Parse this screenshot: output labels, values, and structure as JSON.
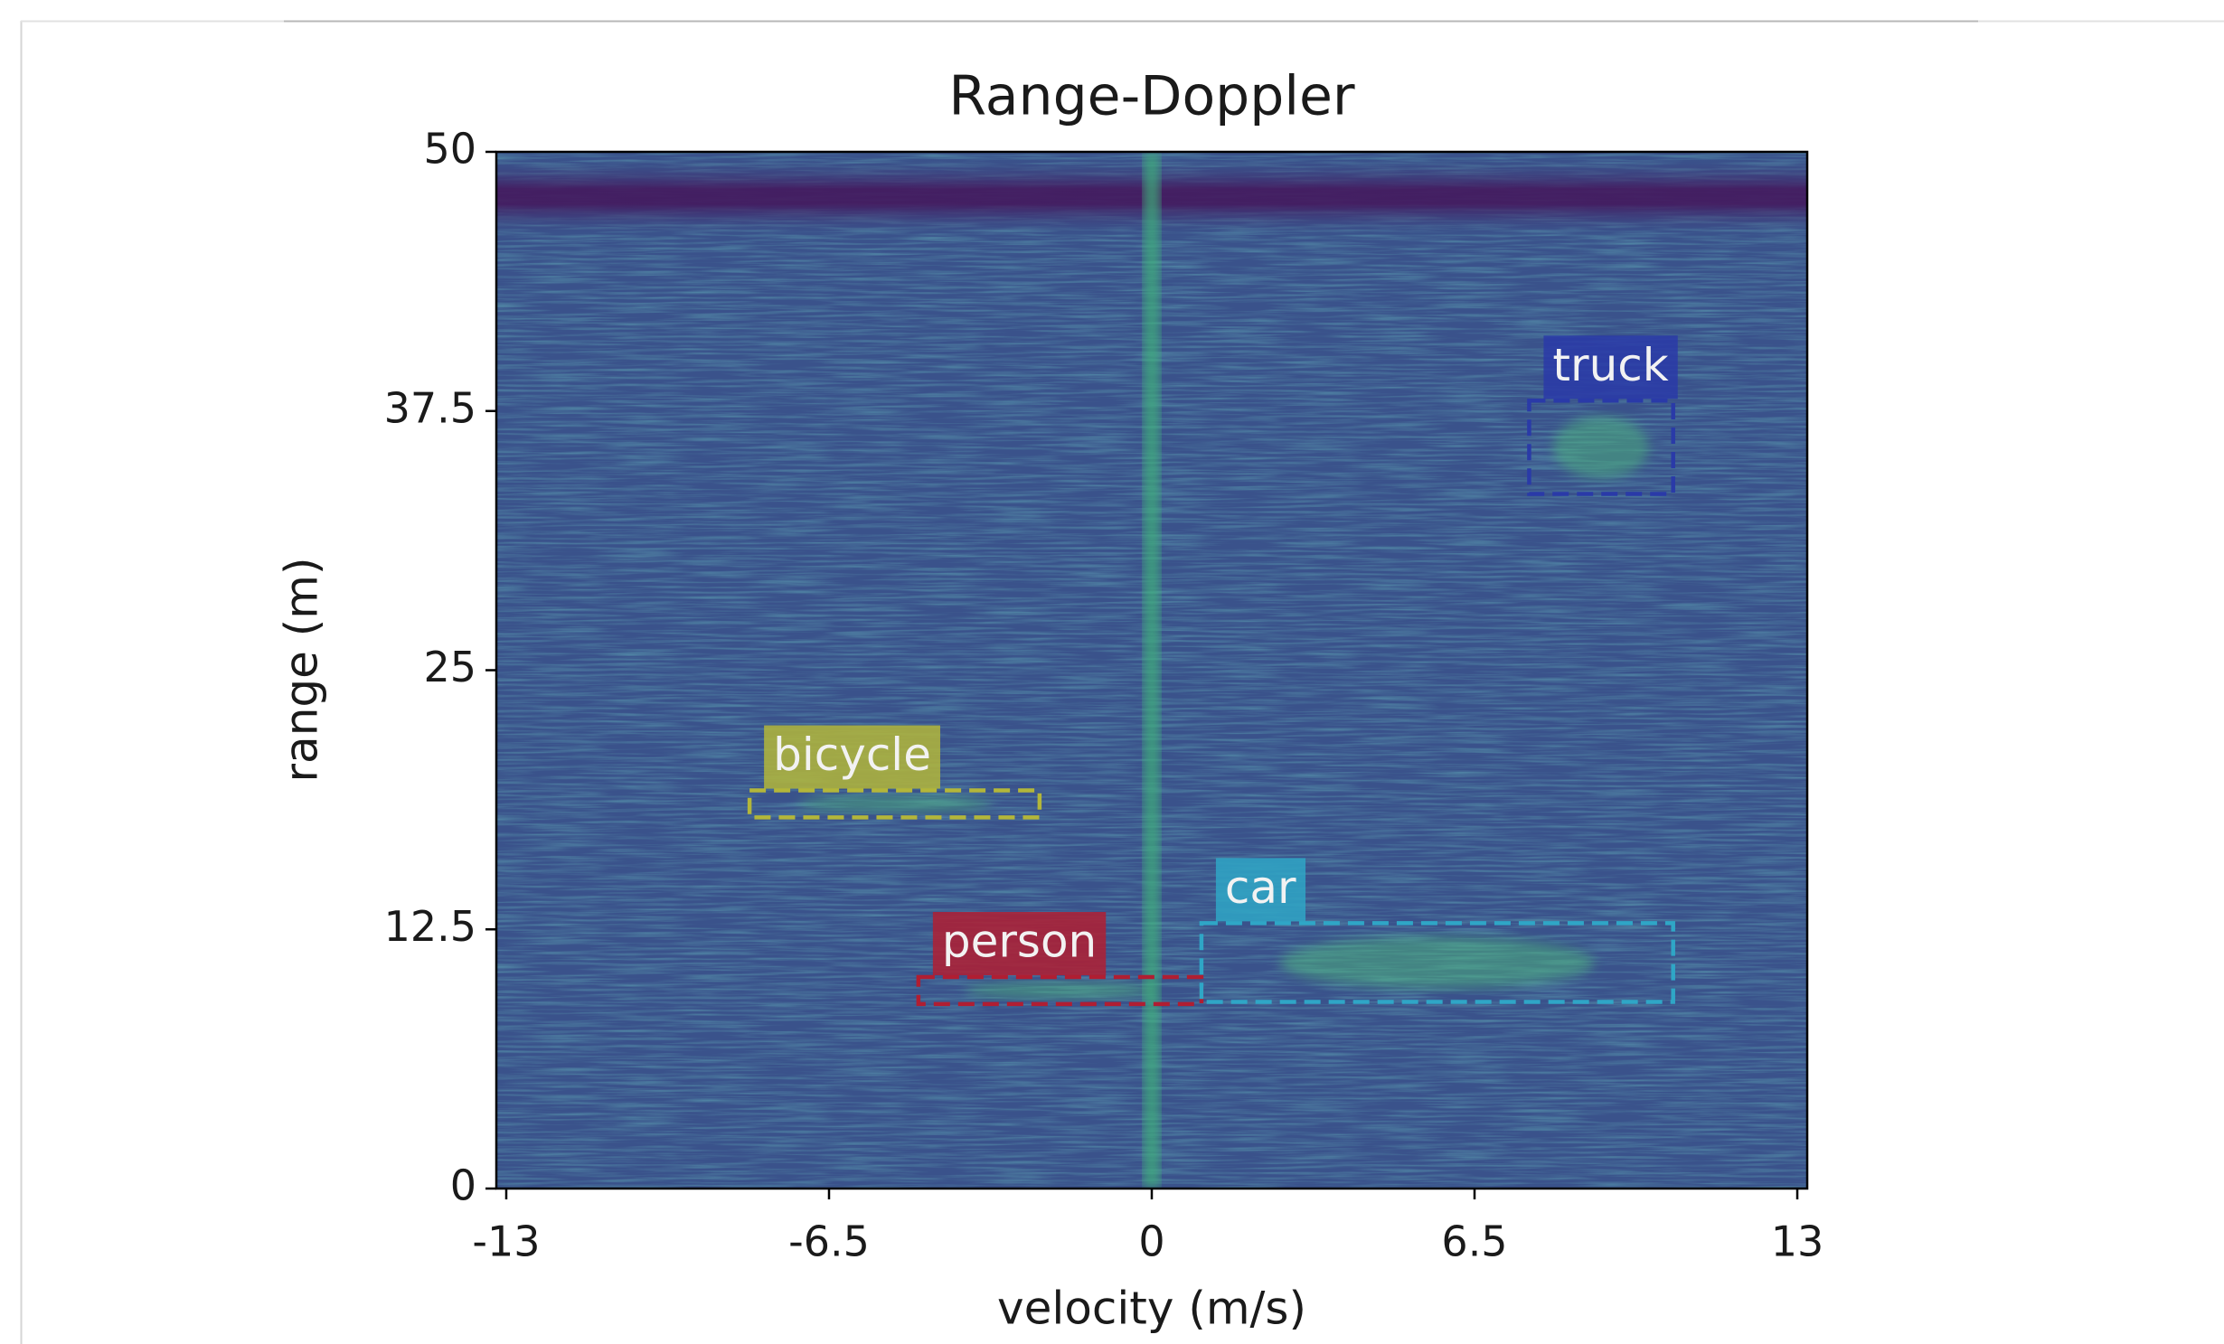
{
  "chart_data": {
    "type": "heatmap",
    "title": "Range-Doppler",
    "x_label": "velocity (m/s)",
    "y_label": "range (m)",
    "xlim": [
      -13.2,
      13.2
    ],
    "ylim": [
      0,
      50
    ],
    "xticks": [
      -13,
      -6.5,
      0,
      6.5,
      13
    ],
    "yticks": [
      0,
      12.5,
      25,
      37.5,
      50
    ],
    "boxes": [
      {
        "label": "truck",
        "color": "#2a3aa8",
        "x": [
          7.6,
          10.5
        ],
        "y": [
          33.5,
          38.0
        ]
      },
      {
        "label": "bicycle",
        "color": "#b3b63a",
        "x": [
          -8.1,
          -2.26
        ],
        "y": [
          17.9,
          19.2
        ]
      },
      {
        "label": "person",
        "color": "#b01e32",
        "x": [
          -4.7,
          1.0
        ],
        "y": [
          8.9,
          10.2
        ]
      },
      {
        "label": "car",
        "color": "#2fa6c6",
        "x": [
          1.0,
          10.5
        ],
        "y": [
          9.0,
          12.8
        ]
      }
    ]
  }
}
